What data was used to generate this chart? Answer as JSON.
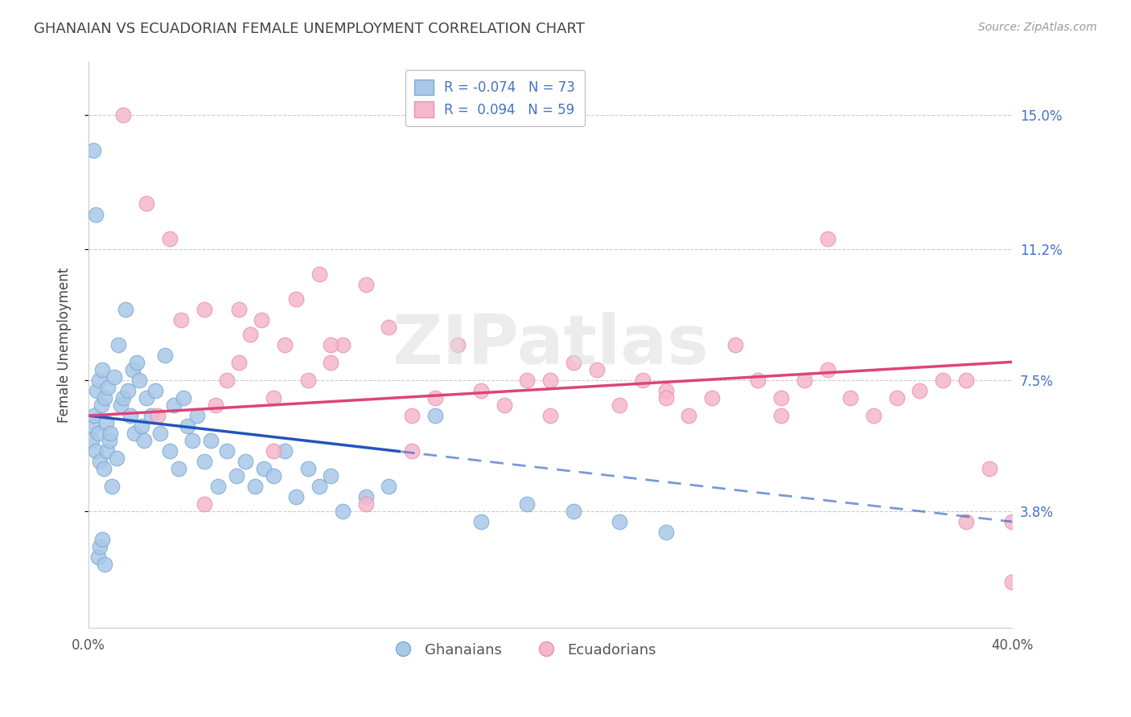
{
  "title": "GHANAIAN VS ECUADORIAN FEMALE UNEMPLOYMENT CORRELATION CHART",
  "source": "Source: ZipAtlas.com",
  "ylabel": "Female Unemployment",
  "ytick_labels": [
    "3.8%",
    "7.5%",
    "11.2%",
    "15.0%"
  ],
  "ytick_values": [
    3.8,
    7.5,
    11.2,
    15.0
  ],
  "xmin": 0.0,
  "xmax": 40.0,
  "ymin": 0.5,
  "ymax": 16.5,
  "legend_blue_label_r": "R = -0.074",
  "legend_blue_label_n": "N = 73",
  "legend_pink_label_r": "R =  0.094",
  "legend_pink_label_n": "N = 59",
  "legend_ghanaians": "Ghanaians",
  "legend_ecuadorians": "Ecuadorians",
  "blue_fill": "#aac8e8",
  "blue_edge": "#7aaad4",
  "pink_fill": "#f5b8ca",
  "pink_edge": "#e890aa",
  "blue_line_color": "#2255bb",
  "pink_line_color": "#dd4477",
  "watermark": "ZIPatlas",
  "blue_intercept": 6.5,
  "blue_slope": -0.075,
  "pink_intercept": 6.5,
  "pink_slope": 0.038,
  "blue_solid_xend": 13.5,
  "grid_color": "#cccccc",
  "axis_color": "#4472c4",
  "text_color": "#444444",
  "source_color": "#999999",
  "blue_x": [
    0.15,
    0.2,
    0.25,
    0.3,
    0.35,
    0.4,
    0.45,
    0.5,
    0.55,
    0.6,
    0.65,
    0.7,
    0.75,
    0.8,
    0.85,
    0.9,
    0.95,
    1.0,
    1.1,
    1.2,
    1.3,
    1.4,
    1.5,
    1.6,
    1.7,
    1.8,
    1.9,
    2.0,
    2.1,
    2.2,
    2.3,
    2.4,
    2.5,
    2.7,
    2.9,
    3.1,
    3.3,
    3.5,
    3.7,
    3.9,
    4.1,
    4.3,
    4.5,
    4.7,
    5.0,
    5.3,
    5.6,
    6.0,
    6.4,
    6.8,
    7.2,
    7.6,
    8.0,
    8.5,
    9.0,
    9.5,
    10.0,
    10.5,
    11.0,
    12.0,
    13.0,
    15.0,
    17.0,
    19.0,
    21.0,
    23.0,
    25.0,
    0.2,
    0.3,
    0.4,
    0.5,
    0.6,
    0.7
  ],
  "blue_y": [
    5.8,
    6.2,
    6.5,
    5.5,
    7.2,
    6.0,
    7.5,
    5.2,
    6.8,
    7.8,
    5.0,
    7.0,
    6.3,
    5.5,
    7.3,
    5.8,
    6.0,
    4.5,
    7.6,
    5.3,
    8.5,
    6.8,
    7.0,
    9.5,
    7.2,
    6.5,
    7.8,
    6.0,
    8.0,
    7.5,
    6.2,
    5.8,
    7.0,
    6.5,
    7.2,
    6.0,
    8.2,
    5.5,
    6.8,
    5.0,
    7.0,
    6.2,
    5.8,
    6.5,
    5.2,
    5.8,
    4.5,
    5.5,
    4.8,
    5.2,
    4.5,
    5.0,
    4.8,
    5.5,
    4.2,
    5.0,
    4.5,
    4.8,
    3.8,
    4.2,
    4.5,
    6.5,
    3.5,
    4.0,
    3.8,
    3.5,
    3.2,
    14.0,
    12.2,
    2.5,
    2.8,
    3.0,
    2.3
  ],
  "pink_x": [
    1.5,
    2.5,
    3.0,
    4.0,
    5.0,
    5.5,
    6.0,
    6.5,
    7.0,
    7.5,
    8.0,
    8.5,
    9.0,
    9.5,
    10.0,
    10.5,
    11.0,
    12.0,
    13.0,
    14.0,
    15.0,
    16.0,
    17.0,
    18.0,
    19.0,
    20.0,
    21.0,
    22.0,
    23.0,
    24.0,
    25.0,
    26.0,
    27.0,
    28.0,
    29.0,
    30.0,
    31.0,
    32.0,
    33.0,
    34.0,
    35.0,
    36.0,
    37.0,
    38.0,
    39.0,
    40.0,
    3.5,
    6.5,
    10.5,
    14.0,
    20.0,
    25.0,
    30.0,
    32.0,
    38.0,
    40.0,
    5.0,
    8.0,
    12.0
  ],
  "pink_y": [
    15.0,
    12.5,
    6.5,
    9.2,
    9.5,
    6.8,
    7.5,
    8.0,
    8.8,
    9.2,
    7.0,
    8.5,
    9.8,
    7.5,
    10.5,
    8.0,
    8.5,
    10.2,
    9.0,
    6.5,
    7.0,
    8.5,
    7.2,
    6.8,
    7.5,
    6.5,
    8.0,
    7.8,
    6.8,
    7.5,
    7.2,
    6.5,
    7.0,
    8.5,
    7.5,
    7.0,
    7.5,
    7.8,
    7.0,
    6.5,
    7.0,
    7.2,
    7.5,
    7.5,
    5.0,
    3.5,
    11.5,
    9.5,
    8.5,
    5.5,
    7.5,
    7.0,
    6.5,
    11.5,
    3.5,
    1.8,
    4.0,
    5.5,
    4.0
  ]
}
